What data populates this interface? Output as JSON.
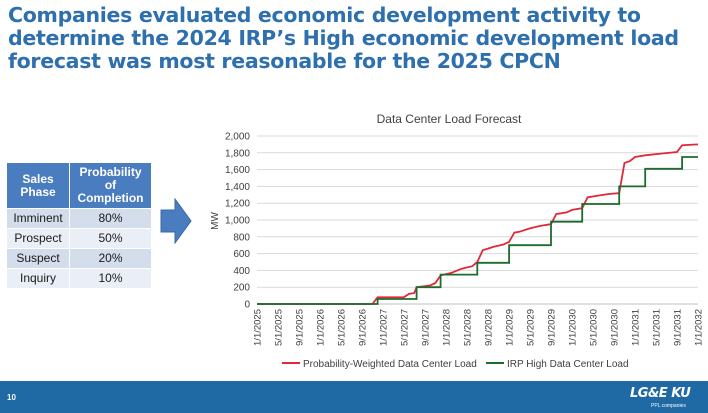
{
  "slide": {
    "title": "Companies evaluated economic development activity to determine the 2024 IRP’s High economic development load forecast was most reasonable for the 2025 CPCN",
    "page_number": "10",
    "logo_text": "LG&E KU",
    "logo_subtext": "PPL companies"
  },
  "sales_table": {
    "headers": [
      "Sales Phase",
      "Probability of Completion"
    ],
    "rows": [
      {
        "phase": "Imminent",
        "probability": "80%"
      },
      {
        "phase": "Prospect",
        "probability": "50%"
      },
      {
        "phase": "Suspect",
        "probability": "20%"
      },
      {
        "phase": "Inquiry",
        "probability": "10%"
      }
    ]
  },
  "colors": {
    "title": "#2e6fae",
    "table_header": "#4a7dbf",
    "arrow": "#4a7dbf",
    "footer": "#1f6aa5",
    "series_prob": "#e0283a",
    "series_irp": "#1e6b2e"
  },
  "chart_data": {
    "type": "line",
    "title": "Data Center Load Forecast",
    "xlabel": "",
    "ylabel": "MW",
    "ylim": [
      0,
      2000
    ],
    "yticks": [
      0,
      200,
      400,
      600,
      800,
      1000,
      1200,
      1400,
      1600,
      1800,
      2000
    ],
    "ytick_labels": [
      "0",
      "200",
      "400",
      "600",
      "800",
      "1,000",
      "1,200",
      "1,400",
      "1,600",
      "1,800",
      "2,000"
    ],
    "xlim": [
      "2025-01-01",
      "2032-01-01"
    ],
    "xtick_labels": [
      "1/1/2025",
      "5/1/2025",
      "9/1/2025",
      "1/1/2026",
      "5/1/2026",
      "9/1/2026",
      "1/1/2027",
      "5/1/2027",
      "9/1/2027",
      "1/1/2028",
      "5/1/2028",
      "9/1/2028",
      "1/1/2029",
      "5/1/2029",
      "9/1/2029",
      "1/1/2030",
      "5/1/2030",
      "9/1/2030",
      "1/1/2031",
      "5/1/2031",
      "9/1/2031",
      "1/1/2032"
    ],
    "grid": true,
    "legend": "bottom",
    "series": [
      {
        "name": "Probability-Weighted Data Center Load",
        "color": "#e0283a",
        "points": [
          [
            "2025-01-01",
            0
          ],
          [
            "2026-11-01",
            0
          ],
          [
            "2026-12-01",
            80
          ],
          [
            "2027-05-01",
            80
          ],
          [
            "2027-06-01",
            120
          ],
          [
            "2027-07-01",
            130
          ],
          [
            "2027-07-15",
            200
          ],
          [
            "2027-10-01",
            220
          ],
          [
            "2027-11-01",
            250
          ],
          [
            "2027-12-01",
            340
          ],
          [
            "2028-02-01",
            370
          ],
          [
            "2028-04-01",
            420
          ],
          [
            "2028-06-01",
            450
          ],
          [
            "2028-07-01",
            500
          ],
          [
            "2028-08-01",
            640
          ],
          [
            "2028-09-01",
            660
          ],
          [
            "2028-10-01",
            680
          ],
          [
            "2028-12-01",
            710
          ],
          [
            "2029-01-01",
            740
          ],
          [
            "2029-02-01",
            850
          ],
          [
            "2029-03-01",
            860
          ],
          [
            "2029-05-01",
            900
          ],
          [
            "2029-07-01",
            930
          ],
          [
            "2029-09-01",
            950
          ],
          [
            "2029-10-01",
            1070
          ],
          [
            "2029-12-01",
            1090
          ],
          [
            "2030-01-01",
            1120
          ],
          [
            "2030-03-01",
            1140
          ],
          [
            "2030-04-01",
            1270
          ],
          [
            "2030-06-01",
            1290
          ],
          [
            "2030-08-01",
            1310
          ],
          [
            "2030-10-01",
            1320
          ],
          [
            "2030-11-01",
            1680
          ],
          [
            "2030-12-01",
            1700
          ],
          [
            "2031-01-01",
            1750
          ],
          [
            "2031-03-01",
            1770
          ],
          [
            "2031-06-01",
            1790
          ],
          [
            "2031-09-01",
            1810
          ],
          [
            "2031-10-01",
            1890
          ],
          [
            "2032-01-01",
            1900
          ]
        ]
      },
      {
        "name": "IRP High Data Center Load",
        "color": "#1e6b2e",
        "points": [
          [
            "2025-01-01",
            0
          ],
          [
            "2026-12-01",
            0
          ],
          [
            "2026-12-01",
            60
          ],
          [
            "2027-07-15",
            60
          ],
          [
            "2027-07-15",
            200
          ],
          [
            "2027-12-01",
            200
          ],
          [
            "2027-12-01",
            350
          ],
          [
            "2028-07-01",
            350
          ],
          [
            "2028-07-01",
            490
          ],
          [
            "2029-01-01",
            490
          ],
          [
            "2029-01-01",
            700
          ],
          [
            "2029-09-01",
            700
          ],
          [
            "2029-09-01",
            980
          ],
          [
            "2030-03-01",
            980
          ],
          [
            "2030-03-01",
            1190
          ],
          [
            "2030-10-01",
            1190
          ],
          [
            "2030-10-01",
            1400
          ],
          [
            "2031-03-01",
            1400
          ],
          [
            "2031-03-01",
            1610
          ],
          [
            "2031-10-01",
            1610
          ],
          [
            "2031-10-01",
            1750
          ],
          [
            "2032-01-01",
            1750
          ]
        ]
      }
    ]
  }
}
